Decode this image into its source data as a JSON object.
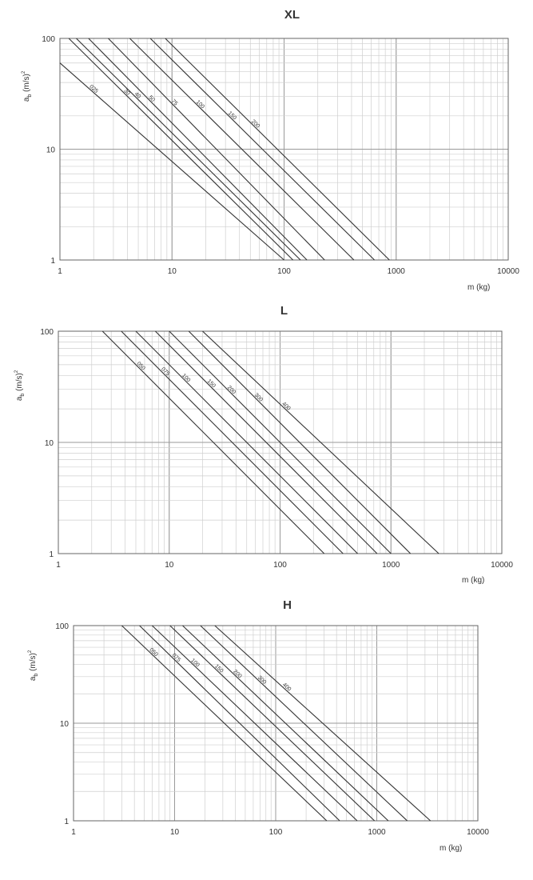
{
  "chart_data": [
    {
      "type": "line",
      "title": "XL",
      "xlabel": "m (kg)",
      "ylabel": {
        "main": "a",
        "sub": "b",
        "unit": " (m/s)",
        "sup": "2"
      },
      "xscale": "log",
      "yscale": "log",
      "xlim": [
        1,
        10000
      ],
      "ylim": [
        1,
        100
      ],
      "x_ticks": [
        "1",
        "10",
        "100",
        "1000",
        "10000"
      ],
      "y_ticks": [
        "1",
        "10",
        "100"
      ],
      "grid": true,
      "series_labels_visible": true,
      "series": [
        {
          "name": "200",
          "x": [
            8.7,
            870
          ],
          "y": [
            100,
            1
          ]
        },
        {
          "name": "150",
          "x": [
            6.4,
            640
          ],
          "y": [
            100,
            1
          ]
        },
        {
          "name": "100",
          "x": [
            4.2,
            420
          ],
          "y": [
            100,
            1
          ]
        },
        {
          "name": "75",
          "x": [
            2.7,
            230
          ],
          "y": [
            100,
            1
          ]
        },
        {
          "name": "50",
          "x": [
            1.8,
            160
          ],
          "y": [
            100,
            1
          ]
        },
        {
          "name": "40",
          "x": [
            1.4,
            140
          ],
          "y": [
            100,
            1
          ]
        },
        {
          "name": "30",
          "x": [
            1.2,
            120
          ],
          "y": [
            100,
            1
          ]
        },
        {
          "name": "025",
          "x": [
            1.0,
            100
          ],
          "y": [
            60,
            1
          ]
        }
      ]
    },
    {
      "type": "line",
      "title": "L",
      "xlabel": "m (kg)",
      "ylabel": {
        "main": "a",
        "sub": "b",
        "unit": " (m/s)",
        "sup": "2"
      },
      "xscale": "log",
      "yscale": "log",
      "xlim": [
        1,
        10000
      ],
      "ylim": [
        1,
        100
      ],
      "x_ticks": [
        "1",
        "10",
        "100",
        "1000",
        "10000"
      ],
      "y_ticks": [
        "1",
        "10",
        "100"
      ],
      "grid": true,
      "series_labels_visible": true,
      "series": [
        {
          "name": "400",
          "x": [
            20,
            2700
          ],
          "y": [
            100,
            1
          ]
        },
        {
          "name": "300",
          "x": [
            15,
            1500
          ],
          "y": [
            100,
            1
          ]
        },
        {
          "name": "200",
          "x": [
            10,
            1000
          ],
          "y": [
            100,
            1
          ]
        },
        {
          "name": "150",
          "x": [
            7.5,
            750
          ],
          "y": [
            100,
            1
          ]
        },
        {
          "name": "100",
          "x": [
            5,
            500
          ],
          "y": [
            100,
            1
          ]
        },
        {
          "name": "075",
          "x": [
            3.7,
            370
          ],
          "y": [
            100,
            1
          ]
        },
        {
          "name": "050",
          "x": [
            2.5,
            250
          ],
          "y": [
            100,
            1
          ]
        }
      ]
    },
    {
      "type": "line",
      "title": "H",
      "xlabel": "m (kg)",
      "ylabel": {
        "main": "a",
        "sub": "b",
        "unit": " (m/s)",
        "sup": "2"
      },
      "xscale": "log",
      "yscale": "log",
      "xlim": [
        1,
        10000
      ],
      "ylim": [
        1,
        100
      ],
      "x_ticks": [
        "1",
        "10",
        "100",
        "1000",
        "10000"
      ],
      "y_ticks": [
        "1",
        "10",
        "100"
      ],
      "grid": true,
      "series_labels_visible": true,
      "series": [
        {
          "name": "400",
          "x": [
            25,
            3400
          ],
          "y": [
            100,
            1
          ]
        },
        {
          "name": "300",
          "x": [
            18,
            2000
          ],
          "y": [
            100,
            1
          ]
        },
        {
          "name": "200",
          "x": [
            12,
            1300
          ],
          "y": [
            100,
            1
          ]
        },
        {
          "name": "150",
          "x": [
            9,
            950
          ],
          "y": [
            100,
            1
          ]
        },
        {
          "name": "100",
          "x": [
            6,
            640
          ],
          "y": [
            100,
            1
          ]
        },
        {
          "name": "075",
          "x": [
            4.5,
            430
          ],
          "y": [
            100,
            1
          ]
        },
        {
          "name": "050",
          "x": [
            3,
            320
          ],
          "y": [
            100,
            1
          ]
        }
      ]
    }
  ]
}
